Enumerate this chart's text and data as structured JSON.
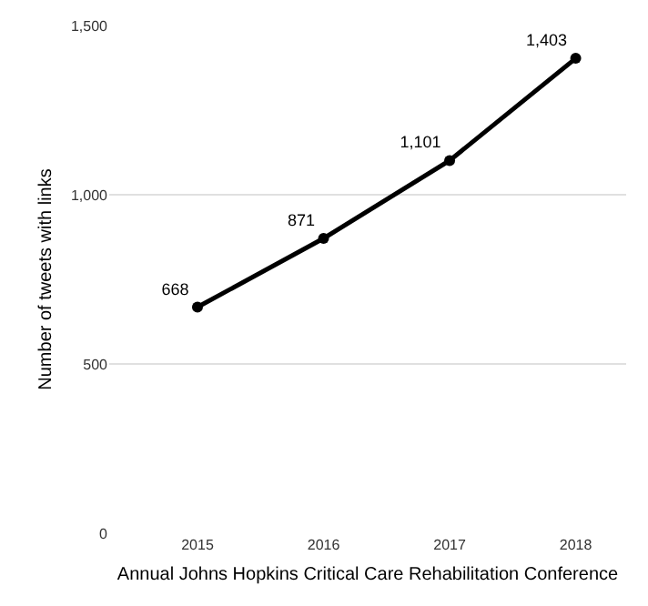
{
  "chart_data": {
    "type": "line",
    "xlabel": "Annual Johns Hopkins Critical Care Rehabilitation Conference",
    "ylabel": "Number of tweets with links",
    "categories": [
      "2015",
      "2016",
      "2017",
      "2018"
    ],
    "series": [
      {
        "color": "#000000",
        "values": [
          668,
          871,
          1101,
          1403
        ],
        "value_labels": [
          "668",
          "871",
          "1,101",
          "1,403"
        ]
      }
    ],
    "ylim": [
      0,
      1500
    ],
    "yticks": [
      0,
      500,
      {
        "value": 1000,
        "label": "1,000"
      },
      {
        "value": 1500,
        "label": "1,500"
      }
    ],
    "grid": "y",
    "marker": "circle",
    "line_style": "solid",
    "legend": false
  }
}
